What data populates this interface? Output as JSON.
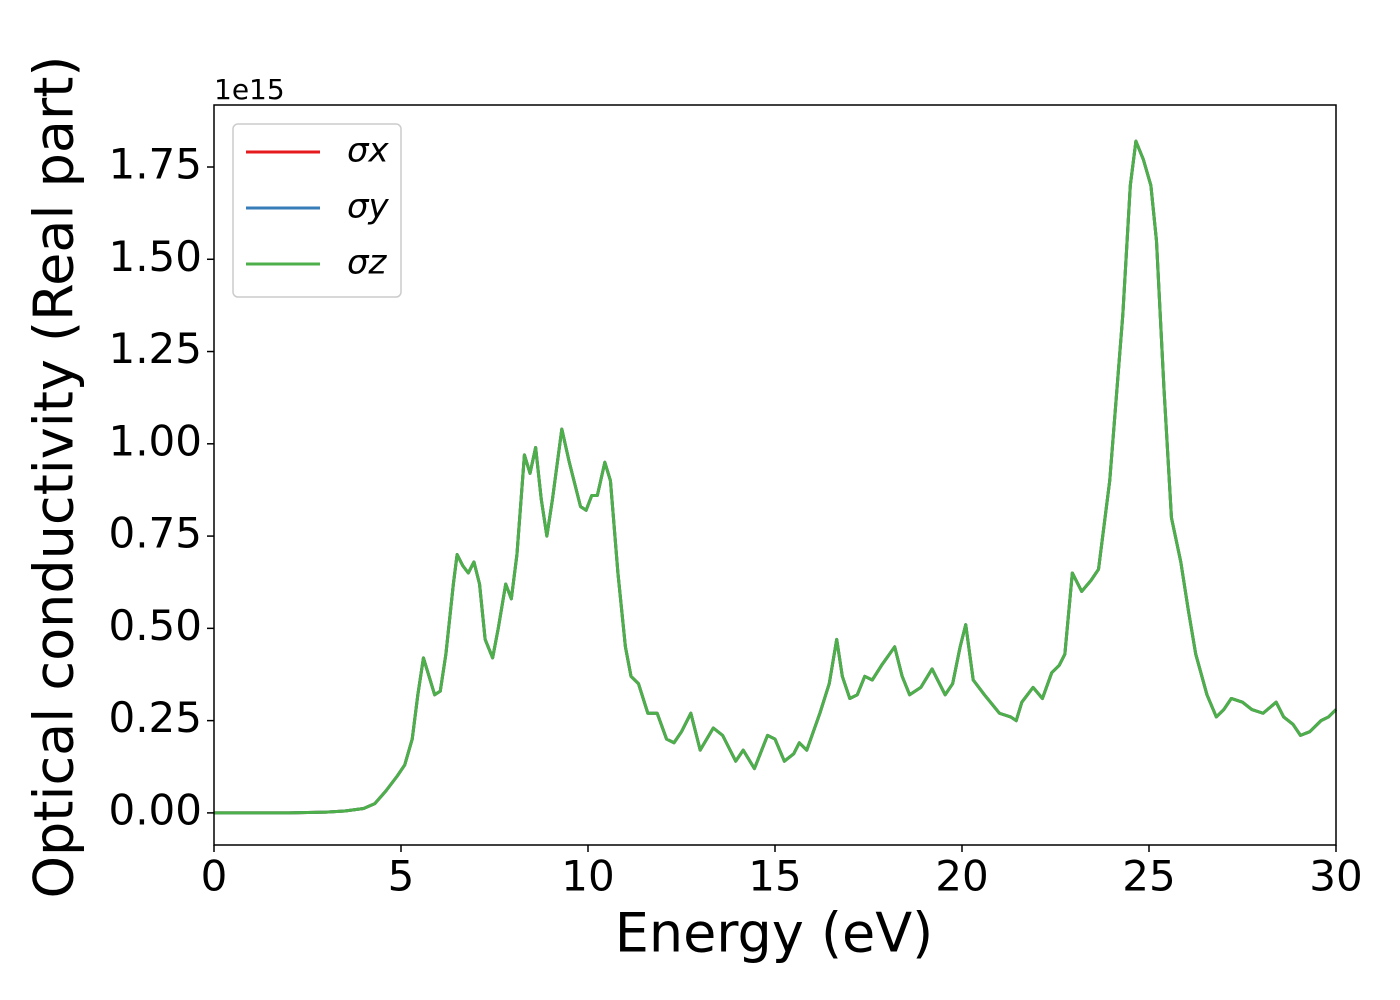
{
  "chart_data": {
    "type": "line",
    "x_label": "Energy (eV)",
    "y_label": "Optical conductivity (Real part)",
    "y_offset_text": "1e15",
    "x": [
      0,
      1,
      2,
      3,
      3.5,
      4,
      4.3,
      4.6,
      4.9,
      5.1,
      5.3,
      5.45,
      5.6,
      5.75,
      5.9,
      6.05,
      6.2,
      6.4,
      6.5,
      6.65,
      6.8,
      6.95,
      7.1,
      7.25,
      7.45,
      7.6,
      7.8,
      7.95,
      8.1,
      8.3,
      8.45,
      8.6,
      8.75,
      8.9,
      9.05,
      9.3,
      9.5,
      9.8,
      9.95,
      10.1,
      10.25,
      10.45,
      10.6,
      10.8,
      11.0,
      11.15,
      11.35,
      11.6,
      11.85,
      12.1,
      12.3,
      12.5,
      12.75,
      13.0,
      13.35,
      13.6,
      13.95,
      14.15,
      14.45,
      14.8,
      15.0,
      15.25,
      15.5,
      15.65,
      15.85,
      16.2,
      16.45,
      16.65,
      16.8,
      17.0,
      17.2,
      17.4,
      17.6,
      17.85,
      18.2,
      18.4,
      18.6,
      18.9,
      19.2,
      19.35,
      19.55,
      19.75,
      19.95,
      20.1,
      20.3,
      20.6,
      21.0,
      21.3,
      21.45,
      21.6,
      21.9,
      22.15,
      22.4,
      22.6,
      22.75,
      22.95,
      23.2,
      23.45,
      23.65,
      23.95,
      24.3,
      24.5,
      24.65,
      24.85,
      25.05,
      25.2,
      25.4,
      25.6,
      25.85,
      26.05,
      26.25,
      26.55,
      26.8,
      27.0,
      27.2,
      27.5,
      27.75,
      28.05,
      28.4,
      28.6,
      28.85,
      29.05,
      29.3,
      29.6,
      29.8,
      30
    ],
    "series": [
      {
        "name": "σx",
        "color": "#e41a1c",
        "values": [
          0,
          0,
          0,
          0.002,
          0.005,
          0.012,
          0.025,
          0.06,
          0.1,
          0.13,
          0.2,
          0.32,
          0.42,
          0.37,
          0.32,
          0.33,
          0.43,
          0.62,
          0.7,
          0.67,
          0.65,
          0.68,
          0.62,
          0.47,
          0.42,
          0.5,
          0.62,
          0.58,
          0.7,
          0.97,
          0.92,
          0.99,
          0.85,
          0.75,
          0.85,
          1.04,
          0.95,
          0.83,
          0.82,
          0.86,
          0.86,
          0.95,
          0.9,
          0.65,
          0.45,
          0.37,
          0.35,
          0.27,
          0.27,
          0.2,
          0.19,
          0.22,
          0.27,
          0.17,
          0.23,
          0.21,
          0.14,
          0.17,
          0.12,
          0.21,
          0.2,
          0.14,
          0.16,
          0.19,
          0.17,
          0.27,
          0.35,
          0.47,
          0.37,
          0.31,
          0.32,
          0.37,
          0.36,
          0.4,
          0.45,
          0.37,
          0.32,
          0.34,
          0.39,
          0.36,
          0.32,
          0.35,
          0.45,
          0.51,
          0.36,
          0.32,
          0.27,
          0.26,
          0.25,
          0.3,
          0.34,
          0.31,
          0.38,
          0.4,
          0.43,
          0.65,
          0.6,
          0.63,
          0.66,
          0.9,
          1.35,
          1.7,
          1.82,
          1.77,
          1.7,
          1.55,
          1.15,
          0.8,
          0.68,
          0.55,
          0.43,
          0.32,
          0.26,
          0.28,
          0.31,
          0.3,
          0.28,
          0.27,
          0.3,
          0.26,
          0.24,
          0.21,
          0.22,
          0.25,
          0.26,
          0.28
        ]
      },
      {
        "name": "σy",
        "color": "#377eb8",
        "values": [
          0,
          0,
          0,
          0.002,
          0.005,
          0.012,
          0.025,
          0.06,
          0.1,
          0.13,
          0.2,
          0.32,
          0.42,
          0.37,
          0.32,
          0.33,
          0.43,
          0.62,
          0.7,
          0.67,
          0.65,
          0.68,
          0.62,
          0.47,
          0.42,
          0.5,
          0.62,
          0.58,
          0.7,
          0.97,
          0.92,
          0.99,
          0.85,
          0.75,
          0.85,
          1.04,
          0.95,
          0.83,
          0.82,
          0.86,
          0.86,
          0.95,
          0.9,
          0.65,
          0.45,
          0.37,
          0.35,
          0.27,
          0.27,
          0.2,
          0.19,
          0.22,
          0.27,
          0.17,
          0.23,
          0.21,
          0.14,
          0.17,
          0.12,
          0.21,
          0.2,
          0.14,
          0.16,
          0.19,
          0.17,
          0.27,
          0.35,
          0.47,
          0.37,
          0.31,
          0.32,
          0.37,
          0.36,
          0.4,
          0.45,
          0.37,
          0.32,
          0.34,
          0.39,
          0.36,
          0.32,
          0.35,
          0.45,
          0.51,
          0.36,
          0.32,
          0.27,
          0.26,
          0.25,
          0.3,
          0.34,
          0.31,
          0.38,
          0.4,
          0.43,
          0.65,
          0.6,
          0.63,
          0.66,
          0.9,
          1.35,
          1.7,
          1.82,
          1.77,
          1.7,
          1.55,
          1.15,
          0.8,
          0.68,
          0.55,
          0.43,
          0.32,
          0.26,
          0.28,
          0.31,
          0.3,
          0.28,
          0.27,
          0.3,
          0.26,
          0.24,
          0.21,
          0.22,
          0.25,
          0.26,
          0.28
        ]
      },
      {
        "name": "σz",
        "color": "#4daf4a",
        "values": [
          0,
          0,
          0,
          0.002,
          0.005,
          0.012,
          0.025,
          0.06,
          0.1,
          0.13,
          0.2,
          0.32,
          0.42,
          0.37,
          0.32,
          0.33,
          0.43,
          0.62,
          0.7,
          0.67,
          0.65,
          0.68,
          0.62,
          0.47,
          0.42,
          0.5,
          0.62,
          0.58,
          0.7,
          0.97,
          0.92,
          0.99,
          0.85,
          0.75,
          0.85,
          1.04,
          0.95,
          0.83,
          0.82,
          0.86,
          0.86,
          0.95,
          0.9,
          0.65,
          0.45,
          0.37,
          0.35,
          0.27,
          0.27,
          0.2,
          0.19,
          0.22,
          0.27,
          0.17,
          0.23,
          0.21,
          0.14,
          0.17,
          0.12,
          0.21,
          0.2,
          0.14,
          0.16,
          0.19,
          0.17,
          0.27,
          0.35,
          0.47,
          0.37,
          0.31,
          0.32,
          0.37,
          0.36,
          0.4,
          0.45,
          0.37,
          0.32,
          0.34,
          0.39,
          0.36,
          0.32,
          0.35,
          0.45,
          0.51,
          0.36,
          0.32,
          0.27,
          0.26,
          0.25,
          0.3,
          0.34,
          0.31,
          0.38,
          0.4,
          0.43,
          0.65,
          0.6,
          0.63,
          0.66,
          0.9,
          1.35,
          1.7,
          1.82,
          1.77,
          1.7,
          1.55,
          1.15,
          0.8,
          0.68,
          0.55,
          0.43,
          0.32,
          0.26,
          0.28,
          0.31,
          0.3,
          0.28,
          0.27,
          0.3,
          0.26,
          0.24,
          0.21,
          0.22,
          0.25,
          0.26,
          0.28
        ]
      }
    ],
    "xlim": [
      0,
      30
    ],
    "xticks": [
      0,
      5,
      10,
      15,
      20,
      25,
      30
    ],
    "ylim": [
      -0.087,
      1.918
    ],
    "yticks": [
      {
        "value": 0,
        "label": "0.00"
      },
      0.25,
      {
        "value": 0.5,
        "label": "0.50"
      },
      0.75,
      {
        "value": 1,
        "label": "1.00"
      },
      1.25,
      {
        "value": 1.5,
        "label": "1.50"
      },
      1.75
    ],
    "grid": false,
    "legend": "upper left"
  }
}
